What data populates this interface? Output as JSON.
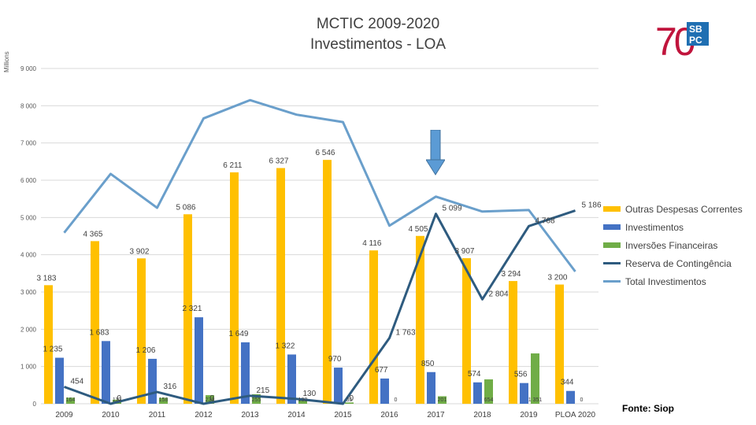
{
  "header": {
    "title_line1": "MCTIC 2009-2020",
    "title_line2": "Investimentos - LOA",
    "y_unit": "Millions",
    "source": "Fonte: Siop"
  },
  "logo": {
    "number": "70",
    "text_top": "SB",
    "text_bottom": "PC"
  },
  "colors": {
    "outras": "#FFC000",
    "investimentos": "#4472C4",
    "inversoes": "#70AD47",
    "reserva": "#2E5B7F",
    "total": "#6A9FCB",
    "logo_red": "#C0143C",
    "logo_blue": "#1F6FB2",
    "arrow": "#5B9BD5"
  },
  "chart_data": {
    "type": "bar",
    "title": "MCTIC 2009-2020 Investimentos - LOA",
    "xlabel": "",
    "ylabel": "Millions",
    "ylim": [
      0,
      9000
    ],
    "yticks": [
      "0",
      "1 000",
      "2 000",
      "3 000",
      "4 000",
      "5 000",
      "6 000",
      "7 000",
      "8 000",
      "9 000"
    ],
    "ytick_values": [
      0,
      1000,
      2000,
      3000,
      4000,
      5000,
      6000,
      7000,
      8000,
      9000
    ],
    "categories": [
      "2009",
      "2010",
      "2011",
      "2012",
      "2013",
      "2014",
      "2015",
      "2016",
      "2017",
      "2018",
      "2019",
      "PLOA 2020"
    ],
    "legend_position": "right",
    "series": [
      {
        "name": "Outras Despesas Correntes",
        "kind": "bar",
        "values": [
          3183,
          4365,
          3902,
          5086,
          6211,
          6327,
          6546,
          4116,
          4505,
          3907,
          3294,
          3200
        ],
        "labels": [
          "3 183",
          "4 365",
          "3 902",
          "5 086",
          "6 211",
          "6 327",
          "6 546",
          "4 116",
          "4 505",
          "3 907",
          "3 294",
          "3 200"
        ]
      },
      {
        "name": "Investimentos",
        "kind": "bar",
        "values": [
          1235,
          1683,
          1206,
          2321,
          1649,
          1322,
          970,
          677,
          850,
          574,
          556,
          344
        ],
        "labels": [
          "1 235",
          "1 683",
          "1 206",
          "2 321",
          "1 649",
          "1 322",
          "970",
          "677",
          "850",
          "574",
          "556",
          "344"
        ]
      },
      {
        "name": "Inversões Financeiras",
        "kind": "bar",
        "values": [
          164,
          110,
          158,
          230,
          255,
          130,
          35,
          0,
          201,
          654,
          1351,
          0
        ],
        "labels": [
          "164",
          "110",
          "158",
          "230",
          "255",
          "130",
          "35",
          "0",
          "201",
          "654",
          "1 351",
          "0"
        ]
      },
      {
        "name": "Reserva de Contingência",
        "kind": "line",
        "values": [
          454,
          0,
          316,
          0,
          215,
          130,
          0,
          1763,
          5099,
          2804,
          4768,
          5186
        ],
        "labels": [
          "454",
          "0",
          "316",
          "0",
          "215",
          "130",
          "0",
          "1 763",
          "5 099",
          "2 804",
          "4 768",
          "5 186"
        ]
      },
      {
        "name": "Total Investimentos",
        "kind": "line",
        "values": [
          4590,
          6170,
          5260,
          7660,
          8150,
          7760,
          7560,
          4780,
          5560,
          5160,
          5200,
          3550
        ],
        "labels": []
      }
    ]
  }
}
